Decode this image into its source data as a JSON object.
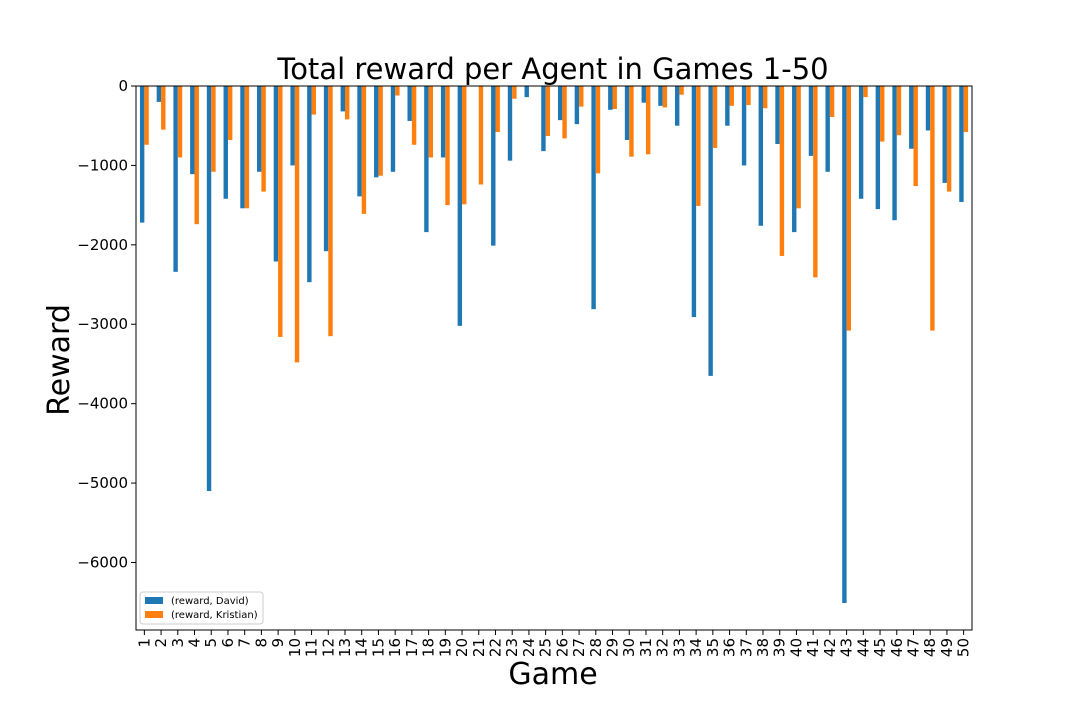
{
  "chart_data": {
    "type": "bar",
    "title": "Total reward per Agent in Games 1-50",
    "xlabel": "Game",
    "ylabel": "Reward",
    "ylim": [
      -6850,
      0
    ],
    "yticks": [
      0,
      -1000,
      -2000,
      -3000,
      -4000,
      -5000,
      -6000
    ],
    "ytick_labels": [
      "0",
      "−1000",
      "−2000",
      "−3000",
      "−4000",
      "−5000",
      "−6000"
    ],
    "grid": false,
    "legend_position": "bottom-left",
    "categories": [
      "1",
      "2",
      "3",
      "4",
      "5",
      "6",
      "7",
      "8",
      "9",
      "10",
      "11",
      "12",
      "13",
      "14",
      "15",
      "16",
      "17",
      "18",
      "19",
      "20",
      "21",
      "22",
      "23",
      "24",
      "25",
      "26",
      "27",
      "28",
      "29",
      "30",
      "31",
      "32",
      "33",
      "34",
      "35",
      "36",
      "37",
      "38",
      "39",
      "40",
      "41",
      "42",
      "43",
      "44",
      "45",
      "46",
      "47",
      "48",
      "49",
      "50"
    ],
    "series": [
      {
        "name": "(reward, David)",
        "color": "#1f77b4",
        "values": [
          -1720,
          -200,
          -2340,
          -1110,
          -5100,
          -1420,
          -1540,
          -1080,
          -2210,
          -1000,
          -2470,
          -2080,
          -320,
          -1390,
          -1150,
          -1080,
          -440,
          -1840,
          -900,
          -3020,
          0,
          -2010,
          -940,
          -140,
          -820,
          -430,
          -480,
          -2810,
          -300,
          -680,
          -210,
          -250,
          -500,
          -2910,
          -3650,
          -500,
          -1000,
          -1760,
          -730,
          -1840,
          -880,
          -1080,
          -6510,
          -1420,
          -1550,
          -1690,
          -790,
          -560,
          -1220,
          -1460
        ]
      },
      {
        "name": "(reward, Kristian)",
        "color": "#ff7f0e",
        "values": [
          -740,
          -550,
          -900,
          -1740,
          -1080,
          -680,
          -1540,
          -1330,
          -3160,
          -3480,
          -360,
          -3150,
          -420,
          -1610,
          -1130,
          -120,
          -740,
          -900,
          -1500,
          -1490,
          -1240,
          -580,
          -160,
          0,
          -630,
          -660,
          -260,
          -1100,
          -290,
          -890,
          -860,
          -270,
          -110,
          -1510,
          -780,
          -250,
          -240,
          -280,
          -2140,
          -1540,
          -2410,
          -390,
          -3080,
          -140,
          -700,
          -620,
          -1260,
          -3080,
          -1330,
          -580
        ]
      }
    ]
  }
}
